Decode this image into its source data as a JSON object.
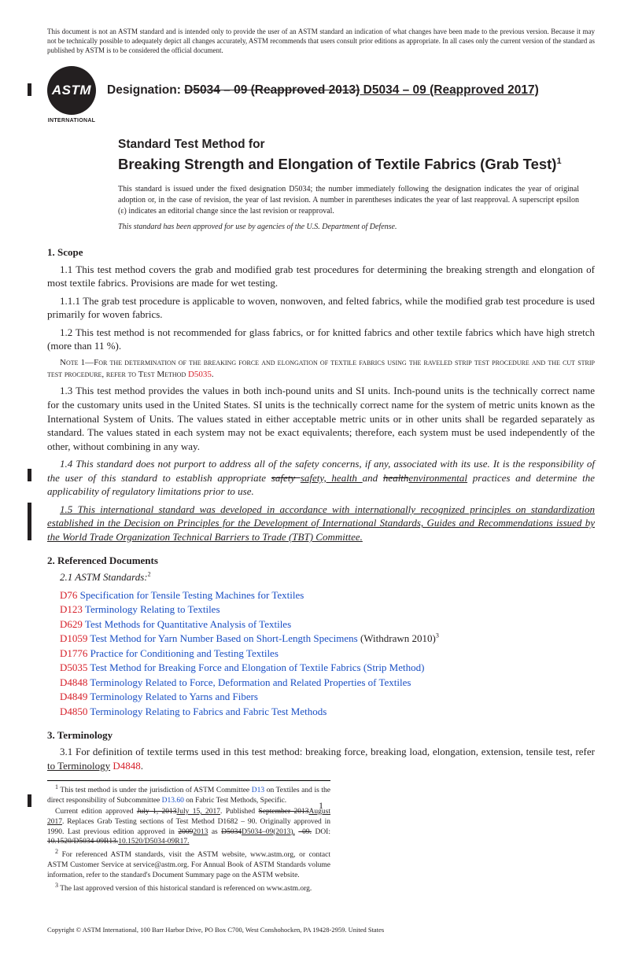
{
  "disclaimer": "This document is not an ASTM standard and is intended only to provide the user of an ASTM standard an indication of what changes have been made to the previous version. Because it may not be technically possible to adequately depict all changes accurately, ASTM recommends that users consult prior editions as appropriate. In all cases only the current version of the standard as published by ASTM is to be considered the official document.",
  "logo": {
    "text": "ASTM",
    "sub": "INTERNATIONAL"
  },
  "designation": {
    "label": "Designation: ",
    "old": "D5034 – 09 (Reapproved 2013)",
    "new": " D5034 – 09 (Reapproved 2017)"
  },
  "title": {
    "overline": "Standard Test Method for",
    "main": "Breaking Strength and Elongation of Textile Fabrics (Grab Test)",
    "sup": "1"
  },
  "issuance": "This standard is issued under the fixed designation D5034; the number immediately following the designation indicates the year of original adoption or, in the case of revision, the year of last revision. A number in parentheses indicates the year of last reapproval. A superscript epsilon (ε) indicates an editorial change since the last revision or reapproval.",
  "dod": "This standard has been approved for use by agencies of the U.S. Department of Defense.",
  "s1": {
    "head": "1.  Scope",
    "p11": "1.1  This test method covers the grab and modified grab test procedures for determining the breaking strength and elongation of most textile fabrics. Provisions are made for wet testing.",
    "p111": "1.1.1  The grab test procedure is applicable to woven, nonwoven, and felted fabrics, while the modified grab test procedure is used primarily for woven fabrics.",
    "p12": "1.2  This test method is not recommended for glass fabrics, or for knitted fabrics and other textile fabrics which have high stretch (more than 11 %).",
    "note1a": "Note 1—For the determination of the breaking force and elongation of textile fabrics using the raveled strip test procedure and the cut strip test procedure, refer to Test Method ",
    "note1ref": "D5035",
    "note1b": ".",
    "p13": "1.3  This test method provides the values in both inch-pound units and SI units. Inch-pound units is the technically correct name for the customary units used in the United States. SI units is the technically correct name for the system of metric units known as the International System of Units. The values stated in either acceptable metric units or in other units shall be regarded separately as standard. The values stated in each system may not be exact equivalents; therefore, each system must be used independently of the other, without combining in any way.",
    "p14a": "1.4  This standard does not purport to address all of the safety concerns, if any, associated with its use. It is the responsibility of the user of this standard to establish appropriate ",
    "p14strike1": "safety ",
    "p14u1": "safety, health ",
    "p14mid": "and ",
    "p14strike2": "health",
    "p14u2": "environmental",
    "p14b": " practices and determine the applicability of regulatory limitations prior to use.",
    "p15": "1.5  This international standard was developed in accordance with internationally recognized principles on standardization established in the Decision on Principles for the Development of International Standards, Guides and Recommendations issued by the World Trade Organization Technical Barriers to Trade (TBT) Committee."
  },
  "s2": {
    "head": "2.  Referenced Documents",
    "sub": "2.1  ASTM Standards:",
    "fn": "2",
    "refs": [
      {
        "code": "D76",
        "title": " Specification for Tensile Testing Machines for Textiles",
        "extra": ""
      },
      {
        "code": "D123",
        "title": " Terminology Relating to Textiles",
        "extra": ""
      },
      {
        "code": "D629",
        "title": " Test Methods for Quantitative Analysis of Textiles",
        "extra": ""
      },
      {
        "code": "D1059",
        "title": " Test Method for Yarn Number Based on Short-Length Specimens",
        "extra": " (Withdrawn 2010)",
        "fn": "3"
      },
      {
        "code": "D1776",
        "title": " Practice for Conditioning and Testing Textiles",
        "extra": ""
      },
      {
        "code": "D5035",
        "title": " Test Method for Breaking Force and Elongation of Textile Fabrics (Strip Method)",
        "extra": ""
      },
      {
        "code": "D4848",
        "title": " Terminology Related to Force, Deformation and Related Properties of Textiles",
        "extra": ""
      },
      {
        "code": "D4849",
        "title": " Terminology Related to Yarns and Fibers",
        "extra": ""
      },
      {
        "code": "D4850",
        "title": " Terminology Relating to Fabrics and Fabric Test Methods",
        "extra": ""
      }
    ]
  },
  "s3": {
    "head": "3.  Terminology",
    "p31a": "3.1  For definition of textile terms used in this test method: breaking force, breaking load, elongation, extension, tensile test, refer ",
    "p31u": "to Terminology",
    "p31ref": " D4848",
    "p31b": "."
  },
  "footnotes": {
    "f1a": " This test method is under the jurisdiction of ASTM Committee ",
    "f1l1": "D13",
    "f1b": " on Textiles and is the direct responsibility of Subcommittee ",
    "f1l2": "D13.60",
    "f1c": " on Fabric Test Methods, Specific.",
    "f1d": "Current edition approved ",
    "f1s1": "July 1, 2013",
    "f1u1": "July 15, 2017",
    "f1e": ". Published ",
    "f1s2": "September 2013",
    "f1u2": "August 2017",
    "f1f": ". Replaces Grab Testing sections of Test Method D1682 – 90. Originally approved in 1990. Last previous edition approved in ",
    "f1s3": "2009",
    "f1u3": "2013",
    "f1g": " as ",
    "f1s4": "D5034",
    "f1u4": "D5034–09(2013).",
    "f1s5": "–09.",
    "f1h": " DOI: ",
    "f1s6": "10.1520/D5034-09R13.",
    "f1u5": "10.1520/D5034-09R17.",
    "f2": " For referenced ASTM standards, visit the ASTM website, www.astm.org, or contact ASTM Customer Service at service@astm.org. For Annual Book of ASTM Standards volume information, refer to the standard's Document Summary page on the ASTM website.",
    "f3": " The last approved version of this historical standard is referenced on www.astm.org."
  },
  "copyright": "Copyright © ASTM International, 100 Barr Harbor Drive, PO Box C700, West Conshohocken, PA 19428-2959. United States",
  "pagenum": "1"
}
